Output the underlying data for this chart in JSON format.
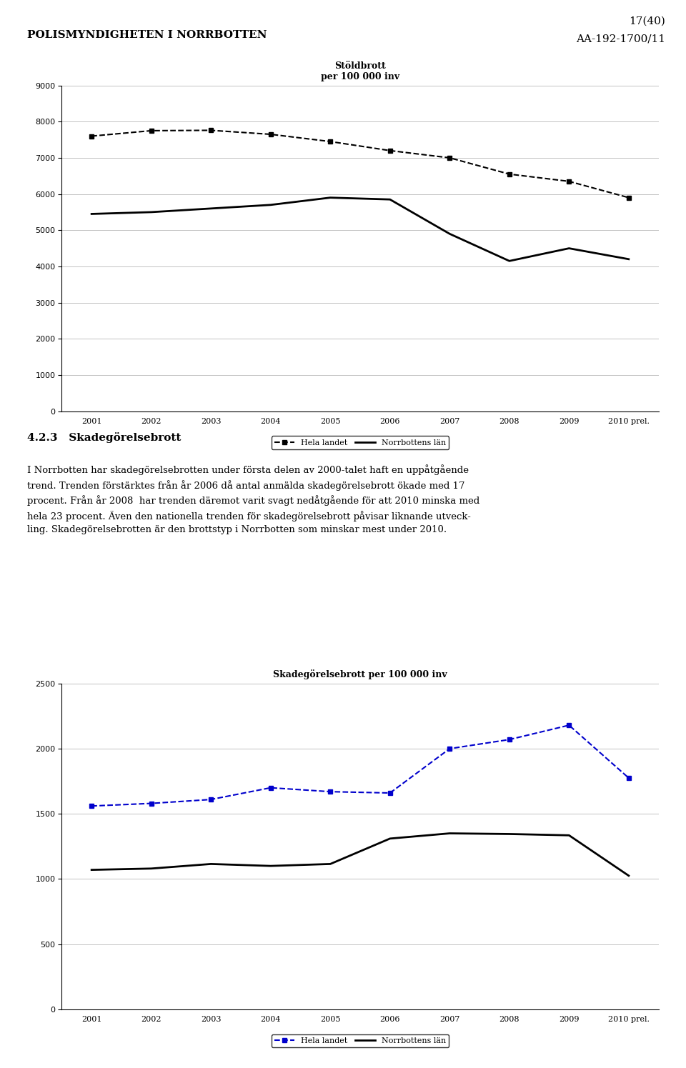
{
  "page_header_left": "POLISMYNDIGHETEN I NORRBOTTEN",
  "page_header_right_top": "17(40)",
  "page_header_right_bottom": "AA-192-1700/11",
  "chart1_title": "Stöldbrott\nper 100 000 inv",
  "chart1_years": [
    "2001",
    "2002",
    "2003",
    "2004",
    "2005",
    "2006",
    "2007",
    "2008",
    "2009",
    "2010 prel."
  ],
  "chart1_hela_landet_vals": [
    7600,
    7750,
    7760,
    7650,
    7450,
    7200,
    7000,
    6550,
    6350,
    5900
  ],
  "chart1_norrbotten_vals": [
    5450,
    5500,
    5600,
    5700,
    5900,
    5850,
    4900,
    4150,
    4500,
    4200
  ],
  "chart1_ylim": [
    0,
    9000
  ],
  "chart1_yticks": [
    0,
    1000,
    2000,
    3000,
    4000,
    5000,
    6000,
    7000,
    8000,
    9000
  ],
  "chart1_color_dashed": "#000000",
  "chart1_color_solid": "#000000",
  "section_title": "4.2.3   Skadegörelsebrott",
  "section_text": "I Norrbotten har skadegörelsebrotten under första delen av 2000-talet haft en uppåtgående\ntrend. Trenden förstärktes från år 2006 då antal anmälda skadegörelsebrott ökade med 17\nprocent. Från år 2008  har trenden däremot varit svagt nedåtgående för att 2010 minska med\nhela 23 procent. Även den nationella trenden för skadegörelsebrott påvisar liknande utveck-\nling. Skadegörelsebrotten är den brottstyp i Norrbotten som minskar mest under 2010.",
  "chart2_title": "Skadegörelsebrott per 100 000 inv",
  "chart2_years": [
    "2001",
    "2002",
    "2003",
    "2004",
    "2005",
    "2006",
    "2007",
    "2008",
    "2009",
    "2010 prel."
  ],
  "chart2_hela_landet_vals": [
    1560,
    1580,
    1610,
    1700,
    1670,
    1660,
    2000,
    2070,
    2180,
    1775
  ],
  "chart2_norrbotten_vals": [
    1070,
    1080,
    1115,
    1100,
    1115,
    1310,
    1350,
    1345,
    1335,
    1025
  ],
  "chart2_ylim": [
    0,
    2500
  ],
  "chart2_yticks": [
    0,
    500,
    1000,
    1500,
    2000,
    2500
  ],
  "chart2_color_dashed": "#0000CC",
  "chart2_color_solid": "#000000",
  "legend_dashed_label": "Hela landet",
  "legend_solid_label": "Norrbottens län",
  "background_color": "#ffffff"
}
